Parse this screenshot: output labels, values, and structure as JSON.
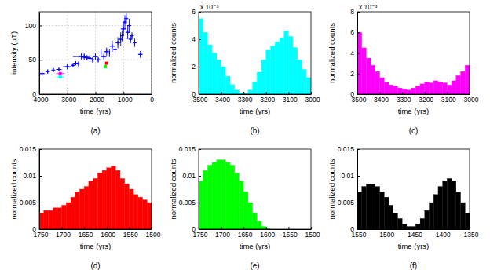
{
  "chart_data": [
    {
      "type": "scatter",
      "caption": "(a)",
      "x_label": "time (yrs)",
      "y_label": "intensity (μT)",
      "xlim": [
        -4000,
        0
      ],
      "xticks": [
        -4000,
        -3000,
        -2000,
        -1000,
        0
      ],
      "ylim": [
        0,
        120
      ],
      "yticks": [
        0,
        50,
        100
      ],
      "grid": true,
      "series": [
        {
          "color": "#0000ff",
          "marker": "plus",
          "x": [
            -3900,
            -3700,
            -3500,
            -3300,
            -3000,
            -2800,
            -2700,
            -2600,
            -2500,
            -2400,
            -2300,
            -2200,
            -2100,
            -2000,
            -1900,
            -1800,
            -1700,
            -1600,
            -1500,
            -1400,
            -1300,
            -1200,
            -1100,
            -1050,
            -1000,
            -950,
            -900,
            -850,
            -800,
            -750,
            -700,
            -600,
            -400
          ],
          "values": [
            30,
            33,
            35,
            36,
            40,
            42,
            45,
            44,
            55,
            55,
            53,
            52,
            50,
            55,
            50,
            60,
            55,
            62,
            60,
            70,
            65,
            75,
            80,
            85,
            95,
            105,
            110,
            90,
            100,
            80,
            85,
            75,
            58
          ],
          "xerr": [
            100,
            80,
            50,
            100,
            150,
            80,
            100,
            60,
            300,
            80,
            150,
            80,
            50,
            100,
            60,
            50,
            100,
            80,
            100,
            100,
            50,
            80,
            100,
            50,
            100,
            60,
            50,
            80,
            60,
            50,
            40,
            50,
            80
          ],
          "yerr": [
            3,
            3,
            3,
            2,
            4,
            3,
            3,
            4,
            5,
            5,
            4,
            5,
            4,
            5,
            4,
            5,
            5,
            6,
            5,
            8,
            5,
            8,
            10,
            8,
            10,
            10,
            8,
            10,
            10,
            6,
            5,
            6,
            5
          ]
        },
        {
          "color": "#00ffff",
          "marker": "square",
          "x": [
            -3250
          ],
          "values": [
            25
          ],
          "xerr": [
            150
          ],
          "yerr": [
            1
          ]
        },
        {
          "color": "#ff00ff",
          "marker": "square",
          "x": [
            -3250
          ],
          "values": [
            30
          ],
          "xerr": [
            150
          ],
          "yerr": [
            1
          ]
        },
        {
          "color": "#ff0000",
          "marker": "square",
          "x": [
            -1600
          ],
          "values": [
            45
          ],
          "xerr": [
            50
          ],
          "yerr": [
            2
          ]
        },
        {
          "color": "#00ff00",
          "marker": "square",
          "x": [
            -1650
          ],
          "values": [
            40
          ],
          "xerr": [
            60
          ],
          "yerr": [
            2
          ]
        }
      ]
    },
    {
      "type": "histogram",
      "caption": "(b)",
      "x_label": "time (yrs)",
      "y_label": "normalized counts",
      "annotations": [
        "x 10⁻³"
      ],
      "color": "#00ffff",
      "xlim": [
        -3500,
        -3000
      ],
      "xticks": [
        -3500,
        -3400,
        -3300,
        -3200,
        -3100,
        -3000
      ],
      "ylim": [
        0,
        0.006
      ],
      "yticks": [
        0,
        {
          "value": 0.002,
          "label": "2"
        },
        {
          "value": 0.004,
          "label": "4"
        },
        {
          "value": 0.006,
          "label": "6"
        }
      ],
      "bins": [
        -3500,
        -3480,
        -3460,
        -3440,
        -3420,
        -3400,
        -3380,
        -3360,
        -3340,
        -3320,
        -3300,
        -3280,
        -3260,
        -3240,
        -3220,
        -3200,
        -3180,
        -3160,
        -3140,
        -3120,
        -3100,
        -3080,
        -3060,
        -3040,
        -3020,
        -3000
      ],
      "values": [
        0.0055,
        0.0045,
        0.0036,
        0.003,
        0.0025,
        0.002,
        0.0013,
        0.0007,
        0.0003,
        0.0001,
        5e-05,
        0.0003,
        0.0009,
        0.0016,
        0.0025,
        0.0032,
        0.0035,
        0.0038,
        0.0041,
        0.0046,
        0.0042,
        0.0034,
        0.0025,
        0.0018,
        0.0012
      ]
    },
    {
      "type": "histogram",
      "caption": "(c)",
      "x_label": "time (yrs)",
      "y_label": "normalized counts",
      "annotations": [
        "x 10⁻³"
      ],
      "color": "#ff00ff",
      "xlim": [
        -3500,
        -3000
      ],
      "xticks": [
        -3500,
        -3400,
        -3300,
        -3200,
        -3100,
        -3000
      ],
      "ylim": [
        0,
        0.008
      ],
      "yticks": [
        0,
        {
          "value": 0.002,
          "label": "2"
        },
        {
          "value": 0.004,
          "label": "4"
        },
        {
          "value": 0.006,
          "label": "6"
        },
        {
          "value": 0.008,
          "label": "8"
        }
      ],
      "bins": [
        -3500,
        -3480,
        -3460,
        -3440,
        -3420,
        -3400,
        -3380,
        -3360,
        -3340,
        -3320,
        -3300,
        -3280,
        -3260,
        -3240,
        -3220,
        -3200,
        -3180,
        -3160,
        -3140,
        -3120,
        -3100,
        -3080,
        -3060,
        -3040,
        -3020,
        -3000
      ],
      "values": [
        0.006,
        0.0045,
        0.0035,
        0.0028,
        0.0022,
        0.0016,
        0.0012,
        0.0009,
        0.0008,
        0.0006,
        0.0005,
        0.0004,
        0.0006,
        0.0008,
        0.001,
        0.0012,
        0.0011,
        0.0013,
        0.0012,
        0.0011,
        0.0009,
        0.0013,
        0.0018,
        0.0022,
        0.0028
      ]
    },
    {
      "type": "histogram",
      "caption": "(d)",
      "x_label": "time (yrs)",
      "y_label": "normalized counts",
      "color": "#ff0000",
      "xlim": [
        -1750,
        -1500
      ],
      "xticks": [
        -1750,
        -1700,
        -1650,
        -1600,
        -1550,
        -1500
      ],
      "ylim": [
        0,
        0.015
      ],
      "yticks": [
        0,
        0.005,
        0.01,
        0.015
      ],
      "bins": [
        -1750,
        -1740,
        -1730,
        -1720,
        -1710,
        -1700,
        -1690,
        -1680,
        -1670,
        -1660,
        -1650,
        -1640,
        -1630,
        -1620,
        -1610,
        -1600,
        -1590,
        -1580,
        -1570,
        -1560,
        -1550,
        -1540,
        -1530,
        -1520,
        -1510,
        -1500
      ],
      "values": [
        0.003,
        0.0035,
        0.0035,
        0.004,
        0.004,
        0.0045,
        0.005,
        0.006,
        0.007,
        0.0075,
        0.008,
        0.009,
        0.0095,
        0.0105,
        0.011,
        0.0115,
        0.0118,
        0.011,
        0.0095,
        0.0085,
        0.0075,
        0.0065,
        0.006,
        0.0055,
        0.005
      ]
    },
    {
      "type": "histogram",
      "caption": "(e)",
      "x_label": "time (yrs)",
      "y_label": "normalized counts",
      "color": "#00ff00",
      "xlim": [
        -1750,
        -1500
      ],
      "xticks": [
        -1750,
        -1700,
        -1650,
        -1600,
        -1550,
        -1500
      ],
      "ylim": [
        0,
        0.015
      ],
      "yticks": [
        0,
        0.005,
        0.01,
        0.015
      ],
      "bins": [
        -1750,
        -1740,
        -1730,
        -1720,
        -1710,
        -1700,
        -1690,
        -1680,
        -1670,
        -1660,
        -1650,
        -1640,
        -1630,
        -1620,
        -1610,
        -1600,
        -1590,
        -1580,
        -1570,
        -1560,
        -1550,
        -1540,
        -1530,
        -1520,
        -1510,
        -1500
      ],
      "values": [
        0.009,
        0.011,
        0.012,
        0.0125,
        0.013,
        0.013,
        0.0125,
        0.012,
        0.0105,
        0.009,
        0.007,
        0.005,
        0.003,
        0.0015,
        0.0005,
        0.0001,
        0,
        0,
        0,
        0,
        0,
        0,
        0,
        0,
        0
      ]
    },
    {
      "type": "histogram",
      "caption": "(f)",
      "x_label": "time (yrs)",
      "y_label": "normalized counts",
      "color": "#000000",
      "xlim": [
        -1550,
        -1350
      ],
      "xticks": [
        -1550,
        -1500,
        -1450,
        -1400,
        -1350
      ],
      "ylim": [
        0,
        0.015
      ],
      "yticks": [
        0,
        0.005,
        0.01,
        0.015
      ],
      "bins": [
        -1550,
        -1542,
        -1534,
        -1526,
        -1518,
        -1510,
        -1502,
        -1494,
        -1486,
        -1478,
        -1470,
        -1462,
        -1454,
        -1446,
        -1438,
        -1430,
        -1422,
        -1414,
        -1406,
        -1398,
        -1390,
        -1382,
        -1374,
        -1366,
        -1358,
        -1350
      ],
      "values": [
        0.007,
        0.008,
        0.0085,
        0.0085,
        0.008,
        0.007,
        0.006,
        0.0045,
        0.003,
        0.002,
        0.001,
        0.0005,
        0.0005,
        0.001,
        0.002,
        0.0035,
        0.005,
        0.0065,
        0.008,
        0.009,
        0.0095,
        0.009,
        0.007,
        0.005,
        0.003
      ]
    }
  ]
}
